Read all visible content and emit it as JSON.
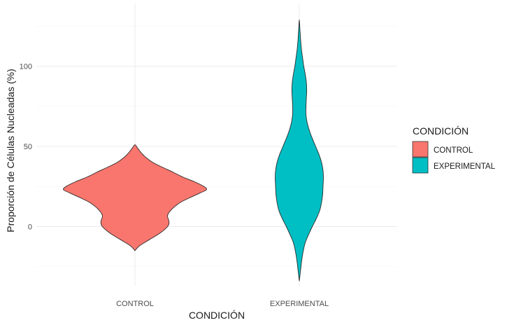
{
  "chart_data": {
    "type": "violin",
    "title": "",
    "xlabel": "CONDICIÓN",
    "ylabel": "Proporción de Células Nucleadas (%)",
    "categories": [
      "CONTROL",
      "EXPERIMENTAL"
    ],
    "yticks": [
      0,
      50,
      100
    ],
    "ylim": [
      -37,
      133
    ],
    "grid": true,
    "legend": {
      "title": "CONDICIÓN",
      "position": "right",
      "entries": [
        {
          "label": "CONTROL",
          "color": "#F8766D"
        },
        {
          "label": "EXPERIMENTAL",
          "color": "#00BFC4"
        }
      ]
    },
    "series": [
      {
        "category": "CONTROL",
        "color": "#F8766D",
        "density_profile": [
          {
            "y": -15,
            "w": 0.0
          },
          {
            "y": -12,
            "w": 0.12
          },
          {
            "y": -8,
            "w": 0.4
          },
          {
            "y": -4,
            "w": 0.68
          },
          {
            "y": 0,
            "w": 0.88
          },
          {
            "y": 3,
            "w": 0.92
          },
          {
            "y": 7,
            "w": 0.88
          },
          {
            "y": 11,
            "w": 1.0
          },
          {
            "y": 15,
            "w": 1.22
          },
          {
            "y": 18,
            "w": 1.48
          },
          {
            "y": 21,
            "w": 1.76
          },
          {
            "y": 23,
            "w": 1.93
          },
          {
            "y": 25,
            "w": 1.86
          },
          {
            "y": 28,
            "w": 1.6
          },
          {
            "y": 31,
            "w": 1.28
          },
          {
            "y": 34,
            "w": 1.02
          },
          {
            "y": 37,
            "w": 0.74
          },
          {
            "y": 40,
            "w": 0.48
          },
          {
            "y": 43,
            "w": 0.3
          },
          {
            "y": 46,
            "w": 0.17
          },
          {
            "y": 49,
            "w": 0.07
          },
          {
            "y": 51,
            "w": 0.0
          }
        ]
      },
      {
        "category": "EXPERIMENTAL",
        "color": "#00BFC4",
        "density_profile": [
          {
            "y": -34,
            "w": 0.0
          },
          {
            "y": -28,
            "w": 0.03
          },
          {
            "y": -22,
            "w": 0.06
          },
          {
            "y": -16,
            "w": 0.1
          },
          {
            "y": -10,
            "w": 0.16
          },
          {
            "y": -5,
            "w": 0.25
          },
          {
            "y": 0,
            "w": 0.35
          },
          {
            "y": 5,
            "w": 0.46
          },
          {
            "y": 10,
            "w": 0.55
          },
          {
            "y": 15,
            "w": 0.6
          },
          {
            "y": 20,
            "w": 0.63
          },
          {
            "y": 25,
            "w": 0.64
          },
          {
            "y": 30,
            "w": 0.65
          },
          {
            "y": 35,
            "w": 0.64
          },
          {
            "y": 40,
            "w": 0.6
          },
          {
            "y": 45,
            "w": 0.53
          },
          {
            "y": 50,
            "w": 0.44
          },
          {
            "y": 55,
            "w": 0.35
          },
          {
            "y": 60,
            "w": 0.27
          },
          {
            "y": 65,
            "w": 0.21
          },
          {
            "y": 70,
            "w": 0.18
          },
          {
            "y": 75,
            "w": 0.18
          },
          {
            "y": 80,
            "w": 0.19
          },
          {
            "y": 85,
            "w": 0.2
          },
          {
            "y": 90,
            "w": 0.19
          },
          {
            "y": 95,
            "w": 0.16
          },
          {
            "y": 100,
            "w": 0.12
          },
          {
            "y": 105,
            "w": 0.09
          },
          {
            "y": 110,
            "w": 0.06
          },
          {
            "y": 115,
            "w": 0.04
          },
          {
            "y": 120,
            "w": 0.025
          },
          {
            "y": 125,
            "w": 0.012
          },
          {
            "y": 129,
            "w": 0.0
          }
        ]
      }
    ]
  }
}
